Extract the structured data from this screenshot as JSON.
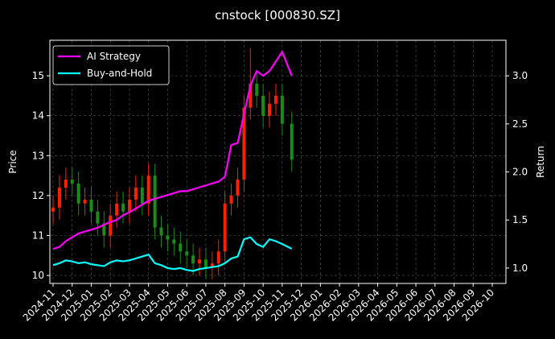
{
  "chart_data": {
    "type": "candlestick",
    "title": "cnstock [000830.SZ]",
    "ylabel": "Price",
    "y2label": "Return",
    "x": [
      "2024-11",
      "2024-11",
      "2024-11",
      "2024-12",
      "2024-12",
      "2024-12",
      "2025-01",
      "2025-01",
      "2025-01",
      "2025-02",
      "2025-02",
      "2025-02",
      "2025-03",
      "2025-03",
      "2025-03",
      "2025-04",
      "2025-04",
      "2025-04",
      "2025-05",
      "2025-05",
      "2025-05",
      "2025-06",
      "2025-06",
      "2025-06",
      "2025-07",
      "2025-07",
      "2025-07",
      "2025-08",
      "2025-08",
      "2025-08",
      "2025-09",
      "2025-09",
      "2025-09",
      "2025-10",
      "2025-10",
      "2025-10",
      "2025-11",
      "2025-11"
    ],
    "open": [
      11.6,
      11.7,
      12.2,
      12.4,
      12.3,
      11.8,
      11.9,
      11.6,
      11.3,
      11.0,
      11.5,
      11.8,
      11.6,
      11.9,
      12.2,
      11.8,
      12.5,
      11.2,
      11.0,
      10.9,
      10.8,
      10.6,
      10.5,
      10.3,
      10.4,
      10.2,
      10.3,
      10.6,
      11.8,
      12.0,
      12.4,
      14.2,
      14.8,
      14.5,
      14.0,
      14.3,
      14.5,
      13.8
    ],
    "high": [
      12.0,
      12.5,
      12.7,
      12.7,
      12.6,
      12.2,
      12.2,
      11.9,
      11.6,
      11.8,
      12.1,
      12.1,
      12.2,
      12.5,
      12.5,
      12.8,
      12.8,
      11.5,
      11.3,
      11.2,
      11.1,
      10.9,
      10.8,
      10.7,
      10.7,
      10.6,
      10.9,
      12.1,
      12.3,
      12.7,
      14.5,
      15.7,
      15.1,
      14.8,
      14.6,
      14.8,
      14.8,
      14.1
    ],
    "low": [
      11.3,
      11.4,
      11.9,
      12.0,
      11.5,
      11.5,
      11.3,
      11.0,
      10.7,
      10.7,
      11.2,
      11.3,
      11.3,
      11.6,
      11.5,
      11.5,
      10.9,
      10.7,
      10.6,
      10.5,
      10.3,
      10.2,
      10.0,
      10.0,
      9.9,
      9.9,
      10.0,
      10.3,
      11.5,
      11.7,
      12.1,
      13.9,
      14.2,
      13.7,
      13.7,
      14.0,
      13.5,
      12.6
    ],
    "close": [
      11.7,
      12.2,
      12.4,
      12.3,
      11.8,
      11.9,
      11.6,
      11.3,
      11.0,
      11.5,
      11.8,
      11.6,
      11.9,
      12.2,
      11.8,
      12.5,
      11.2,
      11.0,
      10.9,
      10.8,
      10.6,
      10.5,
      10.3,
      10.4,
      10.2,
      10.3,
      10.6,
      11.8,
      12.0,
      12.4,
      14.2,
      14.8,
      14.5,
      14.0,
      14.3,
      14.5,
      13.8,
      12.9
    ],
    "up_color": "#ff2000",
    "down_color": "#1a8c1a",
    "series": [
      {
        "name": "AI Strategy",
        "color": "#ff00ff",
        "axis": "y2",
        "values": [
          1.2,
          1.22,
          1.28,
          1.32,
          1.36,
          1.38,
          1.4,
          1.42,
          1.45,
          1.48,
          1.5,
          1.55,
          1.58,
          1.62,
          1.66,
          1.7,
          1.72,
          1.74,
          1.76,
          1.78,
          1.8,
          1.8,
          1.82,
          1.84,
          1.86,
          1.88,
          1.9,
          1.95,
          2.28,
          2.3,
          2.6,
          2.9,
          3.05,
          3.0,
          3.05,
          3.15,
          3.25,
          3.0
        ]
      },
      {
        "name": "Buy-and-Hold",
        "color": "#00ffff",
        "axis": "y2",
        "values": [
          1.03,
          1.05,
          1.08,
          1.07,
          1.05,
          1.06,
          1.04,
          1.03,
          1.02,
          1.06,
          1.08,
          1.07,
          1.08,
          1.1,
          1.12,
          1.14,
          1.05,
          1.03,
          1.0,
          0.99,
          1.0,
          0.98,
          0.97,
          0.99,
          1.0,
          1.01,
          1.02,
          1.05,
          1.1,
          1.12,
          1.3,
          1.32,
          1.25,
          1.22,
          1.3,
          1.28,
          1.25,
          1.2
        ]
      }
    ],
    "xlim": [
      "2024-11",
      "2026-10"
    ],
    "xticks": [
      "2024-11",
      "2024-12",
      "2025-01",
      "2025-02",
      "2025-03",
      "2025-04",
      "2025-05",
      "2025-06",
      "2025-07",
      "2025-08",
      "2025-09",
      "2025-10",
      "2025-11",
      "2025-12",
      "2026-01",
      "2026-02",
      "2026-03",
      "2026-04",
      "2026-05",
      "2026-06",
      "2026-07",
      "2026-08",
      "2026-09",
      "2026-10"
    ],
    "ylim": [
      9.8,
      15.89
    ],
    "yticks": [
      10,
      11,
      12,
      13,
      14,
      15
    ],
    "y2lim": [
      0.84,
      3.37
    ],
    "y2ticks": [
      {
        "value": 1,
        "label": "1.0"
      },
      {
        "value": 1.5,
        "label": "1.5"
      },
      {
        "value": 2,
        "label": "2.0"
      },
      {
        "value": 2.5,
        "label": "2.5"
      },
      {
        "value": 3,
        "label": "3.0"
      }
    ],
    "grid": true,
    "legend": "upper left"
  }
}
